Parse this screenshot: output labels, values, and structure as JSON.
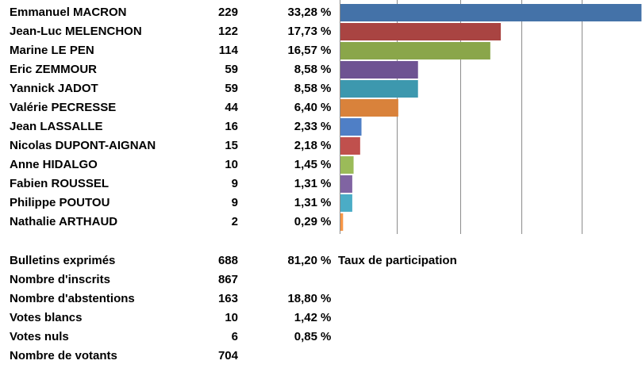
{
  "percent_symbol": "%",
  "chart_data": {
    "type": "bar",
    "orientation": "horizontal",
    "categories": [
      "Emmanuel MACRON",
      "Jean-Luc MELENCHON",
      "Marine LE PEN",
      "Eric ZEMMOUR",
      "Yannick JADOT",
      "Valérie PECRESSE",
      "Jean LASSALLE",
      "Nicolas DUPONT-AIGNAN",
      "Anne HIDALGO",
      "Fabien ROUSSEL",
      "Philippe POUTOU",
      "Nathalie ARTHAUD"
    ],
    "counts": [
      229,
      122,
      114,
      59,
      59,
      44,
      16,
      15,
      10,
      9,
      9,
      2
    ],
    "percent_labels": [
      "33,28",
      "17,73",
      "16,57",
      "8,58",
      "8,58",
      "6,40",
      "2,33",
      "2,18",
      "1,45",
      "1,31",
      "1,31",
      "0,29"
    ],
    "values": [
      229,
      122,
      114,
      59,
      59,
      44,
      16,
      15,
      10,
      9,
      9,
      2
    ],
    "xlim": [
      0,
      230
    ],
    "grid": true,
    "colors": [
      "#4472a8",
      "#a94442",
      "#8aa64a",
      "#6e5392",
      "#3d98ae",
      "#d9823b",
      "#4f7fc6",
      "#c0504d",
      "#9bbb59",
      "#8064a2",
      "#4bacc6",
      "#f79646"
    ]
  },
  "summary": [
    {
      "label": "Bulletins exprimés",
      "value": "688",
      "pct": "81,20",
      "extra": "Taux de participation"
    },
    {
      "label": "Nombre d'inscrits",
      "value": "867",
      "pct": "",
      "extra": ""
    },
    {
      "label": "Nombre d'abstentions",
      "value": "163",
      "pct": "18,80",
      "extra": ""
    },
    {
      "label": "Votes blancs",
      "value": "10",
      "pct": "1,42",
      "extra": ""
    },
    {
      "label": "Votes nuls",
      "value": "6",
      "pct": "0,85",
      "extra": ""
    },
    {
      "label": "Nombre de votants",
      "value": "704",
      "pct": "",
      "extra": ""
    }
  ]
}
